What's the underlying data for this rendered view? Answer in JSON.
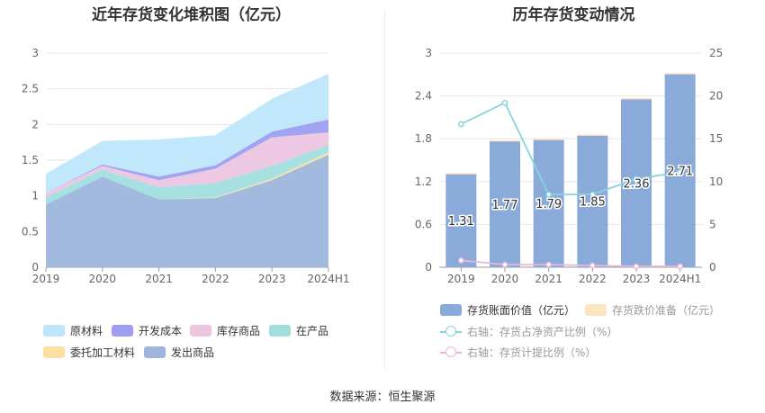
{
  "left_title": "近年存货变化堆积图（亿元）",
  "right_title": "历年存货变动情况",
  "source": "数据来源：恒生聚源",
  "chart_data": [
    {
      "type": "area",
      "stacked": true,
      "title": "近年存货变化堆积图（亿元）",
      "categories": [
        "2019",
        "2020",
        "2021",
        "2022",
        "2023",
        "2024H1"
      ],
      "ylim": [
        0,
        3
      ],
      "yticks": [
        "0",
        "0.5",
        "1",
        "1.5",
        "2",
        "2.5",
        "3"
      ],
      "grid": true,
      "legend_position": "bottom",
      "series": [
        {
          "name": "发出商品",
          "color": "#9eb6dd",
          "values": [
            0.88,
            1.27,
            0.95,
            0.97,
            1.22,
            1.58
          ]
        },
        {
          "name": "委托加工材料",
          "color": "#fbe0a2",
          "values": [
            0.0,
            0.0,
            0.0,
            0.01,
            0.02,
            0.03
          ]
        },
        {
          "name": "在产品",
          "color": "#a2dede",
          "values": [
            0.1,
            0.1,
            0.17,
            0.2,
            0.18,
            0.1
          ]
        },
        {
          "name": "库存商品",
          "color": "#ecc5e0",
          "values": [
            0.06,
            0.05,
            0.1,
            0.2,
            0.4,
            0.18
          ]
        },
        {
          "name": "开发成本",
          "color": "#9e9ef3",
          "values": [
            0.0,
            0.02,
            0.05,
            0.05,
            0.08,
            0.18
          ]
        },
        {
          "name": "原材料",
          "color": "#bee6fa",
          "values": [
            0.27,
            0.33,
            0.52,
            0.42,
            0.46,
            0.64
          ]
        }
      ],
      "legend_order": [
        "原材料",
        "开发成本",
        "库存商品",
        "在产品",
        "委托加工材料",
        "发出商品"
      ]
    },
    {
      "type": "bar",
      "title": "历年存货变动情况",
      "categories": [
        "2019",
        "2020",
        "2021",
        "2022",
        "2023",
        "2024H1"
      ],
      "ylim_left": [
        0,
        3
      ],
      "yticks_left": [
        "0",
        "0.6",
        "1.2",
        "1.8",
        "2.4",
        "3"
      ],
      "ylim_right": [
        0,
        25
      ],
      "yticks_right": [
        "0",
        "5",
        "10",
        "15",
        "20",
        "25"
      ],
      "grid": true,
      "legend_position": "bottom",
      "series": [
        {
          "name": "存货账面价值（亿元）",
          "kind": "bar",
          "axis": "left",
          "color": "#8aabda",
          "values": [
            1.31,
            1.77,
            1.79,
            1.85,
            2.36,
            2.71
          ],
          "labels": [
            "1.31",
            "1.77",
            "1.79",
            "1.85",
            "2.36",
            "2.71"
          ]
        },
        {
          "name": "存货跌价准备（亿元）",
          "kind": "bar",
          "axis": "left",
          "color": "#fce5c0",
          "values": [
            0.01,
            0.01,
            0.01,
            0.01,
            0.01,
            0.01
          ]
        },
        {
          "name": "右轴：存货占净资产比例（%）",
          "kind": "line",
          "axis": "right",
          "color": "#86d4dc",
          "values": [
            16.7,
            19.2,
            8.5,
            8.5,
            10.3,
            11.1
          ]
        },
        {
          "name": "右轴：存货计提比例（%）",
          "kind": "line",
          "axis": "right",
          "color": "#e8b8d8",
          "values": [
            0.8,
            0.3,
            0.3,
            0.2,
            0.1,
            0.1
          ]
        }
      ]
    }
  ]
}
